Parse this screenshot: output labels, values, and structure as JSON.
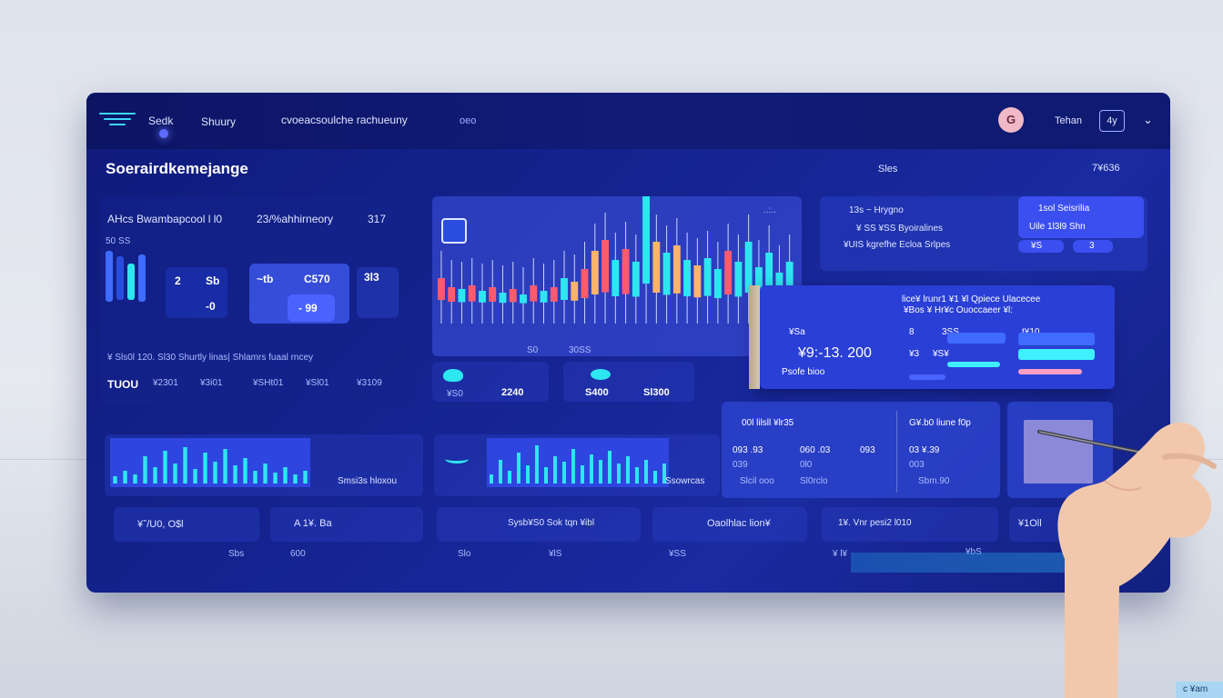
{
  "topbar": {
    "brand": "Sedk",
    "nav_1": "Shuury",
    "nav_2": "cvoeacsoulche rachueuny",
    "nav_3": "oeo",
    "avatar_letter": "G",
    "user_label": "Tehan",
    "user_button": "4y"
  },
  "header": {
    "title": "Soerairdkemejange",
    "right_label": "Sles",
    "right_value": "7¥636"
  },
  "summary_card": {
    "col1": "AHcs Bwambapcool l l0",
    "col2": "23/%ahhirneory",
    "col3": "317",
    "tiny_label": "50 SS",
    "tile_a": "2",
    "tile_a2": "Sb",
    "tile_b": "~tb",
    "tile_c": "C570",
    "tile_d": "3l3",
    "tile_e": "-0",
    "tile_f": "- 99",
    "legend": "¥ Sls0l 120. Sl30 Shurtly linas| Shlamrs fuaal rncey",
    "row_label": "TUOU",
    "row_v1": "¥2301",
    "row_v2": "¥3i01",
    "row_v3": "¥SHt01",
    "row_v4": "¥Sl01",
    "row_v5": "¥3109"
  },
  "candle_card": {
    "top_label": "..:..",
    "x_1": "S0",
    "x_2": "30SS",
    "mini_1_label": "¥S0",
    "mini_1_value": "2240",
    "mini_2_value": "S400",
    "mini_2_sub": "Sl300"
  },
  "right_top_card": {
    "line1": "13s ~ Hrygno",
    "line2": "¥ SS ¥SS Byoiralines",
    "line3": "¥UIS kgrefhe Ecloa Srlpes",
    "badge_1": "1sol Seisrilia",
    "badge_2": "Uile 1l3l9 Shn",
    "badge_3": "¥S",
    "badge_4": "3"
  },
  "overlay_card": {
    "heading_1": "lice¥ lrunr1 ¥1 ¥l Qpiece Ulacecee",
    "heading_2": "¥Bos ¥ Hr¥c Ouoccaeer ¥l:",
    "sub_1": "¥Sa",
    "sub_2": "8",
    "sub_3": "3SS",
    "sub_4": "t¥10",
    "big_value": "¥9:-13. 200",
    "foot": "Psofe bioo",
    "lbl_1": "¥3",
    "lbl_2": "¥S¥"
  },
  "metrics_card": {
    "head_1": "00l lilsll ¥lr35",
    "head_2": "G¥.b0 liune f0p",
    "v1": "093 .93",
    "v2": "060 .03",
    "v3": "093",
    "v4": "03 ¥.39",
    "s1": "039",
    "s2": "0l0",
    "s3": "003",
    "f1": "Slcil ooo",
    "f2": "Sl0rclo",
    "f3": "Sbm.90"
  },
  "wave_cards": {
    "left_label": "Smsi3s hloxou",
    "right_label": "Ssowrcas"
  },
  "pills": [
    {
      "label": "¥‶/U0, O$l"
    },
    {
      "label": "A 1¥. Ba"
    },
    {
      "label": "Sysb¥S0 Sok tqn ¥ibl"
    },
    {
      "label": "Oaolhlac lion¥"
    },
    {
      "label": "1¥. Vnr pesi2 l010"
    },
    {
      "label": "¥1Oll"
    }
  ],
  "footer_labels": {
    "a": "Sbs",
    "b": "600",
    "c": "Slo",
    "d": "¥lS",
    "e": "¥SS",
    "f": "¥ l¥",
    "g": "¥bS"
  },
  "badge": {
    "label": "c  ¥am"
  },
  "colors": {
    "panel": "#14238f",
    "accent_cyan": "#2ee6ef",
    "accent_red": "#ff5a6e",
    "accent_orange": "#ffb36b",
    "accent_blue": "#3f6bff"
  },
  "candles": [
    {
      "v": 30,
      "c": "red"
    },
    {
      "v": 20,
      "c": "red"
    },
    {
      "v": 18,
      "c": "cyan"
    },
    {
      "v": 22,
      "c": "red"
    },
    {
      "v": 16,
      "c": "cyan"
    },
    {
      "v": 20,
      "c": "red"
    },
    {
      "v": 14,
      "c": "cyan"
    },
    {
      "v": 18,
      "c": "red"
    },
    {
      "v": 12,
      "c": "cyan"
    },
    {
      "v": 22,
      "c": "red"
    },
    {
      "v": 16,
      "c": "cyan"
    },
    {
      "v": 20,
      "c": "red"
    },
    {
      "v": 30,
      "c": "cyan"
    },
    {
      "v": 26,
      "c": "orange"
    },
    {
      "v": 40,
      "c": "red"
    },
    {
      "v": 60,
      "c": "orange"
    },
    {
      "v": 72,
      "c": "red"
    },
    {
      "v": 50,
      "c": "cyan"
    },
    {
      "v": 62,
      "c": "red"
    },
    {
      "v": 48,
      "c": "cyan"
    },
    {
      "v": 120,
      "c": "cyan"
    },
    {
      "v": 70,
      "c": "orange"
    },
    {
      "v": 58,
      "c": "cyan"
    },
    {
      "v": 66,
      "c": "orange"
    },
    {
      "v": 50,
      "c": "cyan"
    },
    {
      "v": 44,
      "c": "orange"
    },
    {
      "v": 52,
      "c": "cyan"
    },
    {
      "v": 40,
      "c": "cyan"
    },
    {
      "v": 60,
      "c": "red"
    },
    {
      "v": 48,
      "c": "cyan"
    },
    {
      "v": 70,
      "c": "cyan"
    },
    {
      "v": 42,
      "c": "cyan"
    },
    {
      "v": 58,
      "c": "cyan"
    },
    {
      "v": 36,
      "c": "cyan"
    },
    {
      "v": 48,
      "c": "cyan"
    }
  ],
  "wave_left": [
    8,
    14,
    10,
    30,
    18,
    36,
    22,
    40,
    16,
    34,
    24,
    38,
    20,
    28,
    14,
    22,
    12,
    18,
    10,
    14
  ],
  "wave_right": [
    10,
    26,
    14,
    34,
    20,
    42,
    18,
    30,
    24,
    38,
    20,
    32,
    26,
    36,
    22,
    30,
    18,
    26,
    14,
    22
  ]
}
